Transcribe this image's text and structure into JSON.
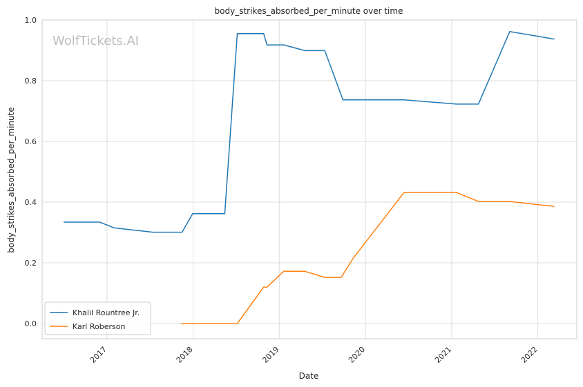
{
  "chart_data": {
    "type": "line",
    "title": "body_strikes_absorbed_per_minute over time",
    "xlabel": "Date",
    "ylabel": "body_strikes_absorbed_per_minute",
    "watermark": "WolfTickets.AI",
    "xlim": [
      "2016-04-01",
      "2022-06-15"
    ],
    "ylim": [
      -0.05,
      1.0
    ],
    "x_ticks": [
      "2017",
      "2018",
      "2019",
      "2020",
      "2021",
      "2022"
    ],
    "y_ticks": [
      "0.0",
      "0.2",
      "0.4",
      "0.6",
      "0.8",
      "1.0"
    ],
    "grid": true,
    "legend_position": "lower-left",
    "series": [
      {
        "name": "Khalil Rountree Jr.",
        "color": "#1f77b4",
        "points": [
          [
            "2016-07-01",
            0.334
          ],
          [
            "2016-12-01",
            0.334
          ],
          [
            "2017-02-01",
            0.315
          ],
          [
            "2017-07-15",
            0.301
          ],
          [
            "2017-11-15",
            0.301
          ],
          [
            "2017-12-30",
            0.362
          ],
          [
            "2018-05-15",
            0.362
          ],
          [
            "2018-07-07",
            0.955
          ],
          [
            "2018-10-27",
            0.955
          ],
          [
            "2018-11-10",
            0.918
          ],
          [
            "2019-01-20",
            0.918
          ],
          [
            "2019-04-20",
            0.899
          ],
          [
            "2019-07-13",
            0.899
          ],
          [
            "2019-09-28",
            0.737
          ],
          [
            "2020-06-13",
            0.737
          ],
          [
            "2021-01-20",
            0.723
          ],
          [
            "2021-04-24",
            0.723
          ],
          [
            "2021-09-04",
            0.962
          ],
          [
            "2022-03-12",
            0.937
          ]
        ]
      },
      {
        "name": "Karl Roberson",
        "color": "#ff7f0e",
        "points": [
          [
            "2017-11-11",
            0.0
          ],
          [
            "2018-06-01",
            0.0
          ],
          [
            "2018-07-07",
            0.0
          ],
          [
            "2018-10-27",
            0.12
          ],
          [
            "2018-11-10",
            0.12
          ],
          [
            "2019-01-20",
            0.172
          ],
          [
            "2019-04-20",
            0.172
          ],
          [
            "2019-07-13",
            0.152
          ],
          [
            "2019-09-20",
            0.152
          ],
          [
            "2019-11-10",
            0.215
          ],
          [
            "2020-06-13",
            0.432
          ],
          [
            "2021-01-20",
            0.432
          ],
          [
            "2021-04-24",
            0.402
          ],
          [
            "2021-09-04",
            0.402
          ],
          [
            "2022-03-12",
            0.386
          ]
        ]
      }
    ]
  }
}
